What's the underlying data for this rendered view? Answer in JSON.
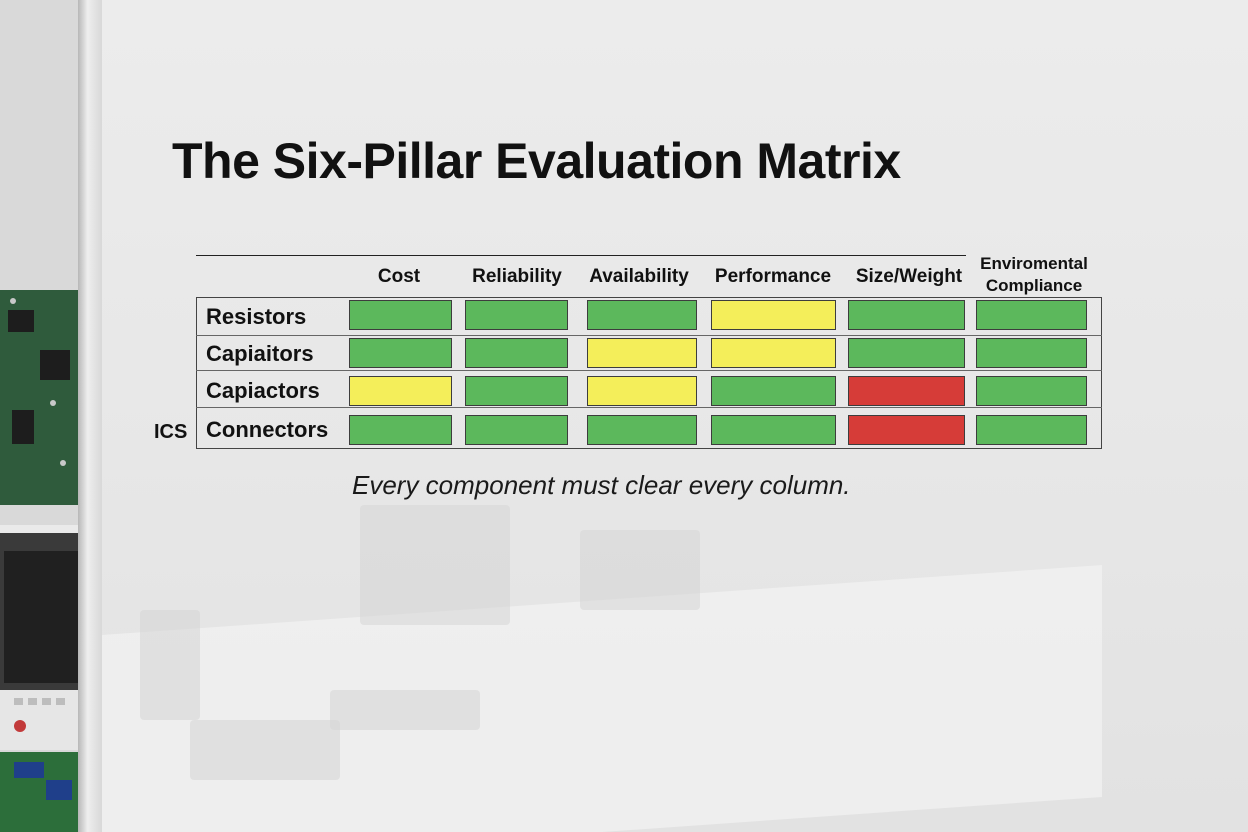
{
  "title": "The Six-Pillar Evaluation Matrix",
  "columns": [
    "Cost",
    "Reliability",
    "Availability",
    "Performance",
    "Size/Weight",
    "Enviromental Compliance"
  ],
  "column_last_lines": [
    "Enviromental",
    "Compliance"
  ],
  "side_label": "ICS",
  "rows": [
    {
      "label": "Resistors",
      "ratings": [
        "green",
        "green",
        "green",
        "yellow",
        "green",
        "green"
      ]
    },
    {
      "label": "Capiaitors",
      "ratings": [
        "green",
        "green",
        "yellow",
        "yellow",
        "green",
        "green"
      ]
    },
    {
      "label": "Capiactors",
      "ratings": [
        "yellow",
        "green",
        "yellow",
        "green",
        "red",
        "green"
      ]
    },
    {
      "label": "Connectors",
      "ratings": [
        "green",
        "green",
        "green",
        "green",
        "red",
        "green"
      ]
    }
  ],
  "colors": {
    "green": "#5cb85c",
    "yellow": "#f4ee5a",
    "red": "#d63c38"
  },
  "caption": "Every component must clear every column."
}
